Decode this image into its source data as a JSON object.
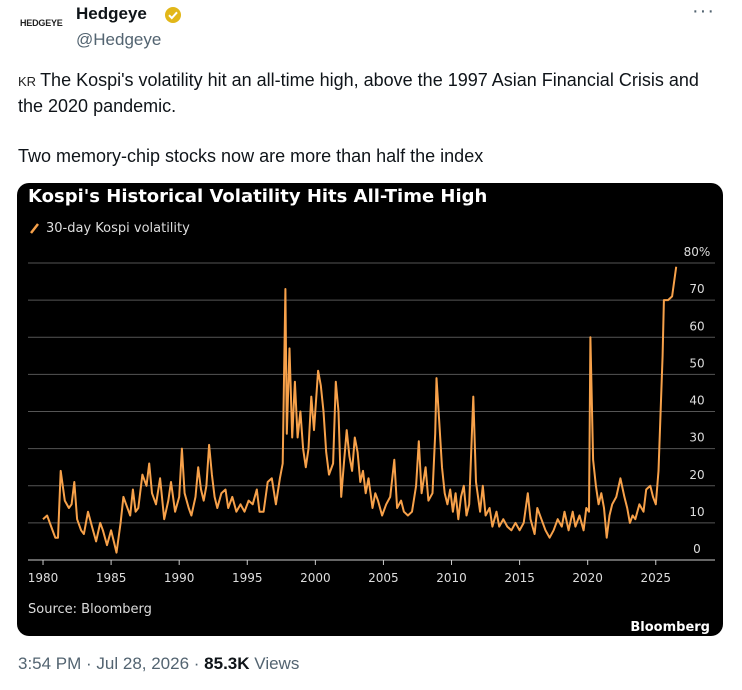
{
  "account": {
    "avatar_text": "HEDGEYE",
    "name": "Hedgeye",
    "handle": "@Hedgeye",
    "menu": "···"
  },
  "tweet": {
    "flag": "KR",
    "paragraphs": [
      "The Kospi's volatility hit an all-time high, above the 1997 Asian Financial Crisis and the 2020 pandemic.",
      "Two memory-chip stocks now are more than half the index"
    ]
  },
  "footer": {
    "meta": "3:54 PM · Jul 28, 2026 ·",
    "views_count": "85.3K",
    "views_label": "Views"
  },
  "chart_data": {
    "type": "line",
    "title": "Kospi's Historical Volatility Hits All-Time High",
    "source": "Source: Bloomberg",
    "brand": "Bloomberg",
    "series": [
      {
        "name": "30-day Kospi volatility",
        "color": "#f7a14a",
        "x": [
          1980,
          1980.3,
          1980.6,
          1980.9,
          1981.1,
          1981.3,
          1981.6,
          1981.9,
          1982.1,
          1982.3,
          1982.5,
          1982.8,
          1983,
          1983.3,
          1983.6,
          1983.9,
          1984.2,
          1984.4,
          1984.7,
          1985,
          1985.2,
          1985.4,
          1985.7,
          1985.9,
          1986.1,
          1986.4,
          1986.6,
          1986.8,
          1987,
          1987.3,
          1987.6,
          1987.8,
          1988,
          1988.3,
          1988.6,
          1988.9,
          1989.2,
          1989.4,
          1989.7,
          1990,
          1990.2,
          1990.4,
          1990.7,
          1990.9,
          1991.2,
          1991.4,
          1991.6,
          1991.8,
          1992,
          1992.2,
          1992.4,
          1992.6,
          1992.8,
          1993.1,
          1993.4,
          1993.6,
          1993.9,
          1994.2,
          1994.5,
          1994.8,
          1995.1,
          1995.4,
          1995.7,
          1995.9,
          1996.2,
          1996.5,
          1996.8,
          1997.1,
          1997.4,
          1997.6,
          1997.8,
          1997.9,
          1998.1,
          1998.3,
          1998.5,
          1998.7,
          1998.9,
          1999.1,
          1999.3,
          1999.5,
          1999.7,
          1999.9,
          2000.2,
          2000.4,
          2000.6,
          2000.8,
          2001,
          2001.3,
          2001.5,
          2001.7,
          2001.9,
          2002.1,
          2002.3,
          2002.5,
          2002.7,
          2002.9,
          2003.1,
          2003.3,
          2003.5,
          2003.7,
          2003.9,
          2004.2,
          2004.4,
          2004.6,
          2004.9,
          2005.2,
          2005.5,
          2005.8,
          2006,
          2006.3,
          2006.5,
          2006.8,
          2007.1,
          2007.4,
          2007.6,
          2007.8,
          2008.1,
          2008.3,
          2008.6,
          2008.8,
          2008.9,
          2009.1,
          2009.3,
          2009.5,
          2009.7,
          2009.9,
          2010.1,
          2010.3,
          2010.5,
          2010.7,
          2010.9,
          2011.1,
          2011.3,
          2011.6,
          2011.8,
          2012.1,
          2012.3,
          2012.5,
          2012.8,
          2013,
          2013.3,
          2013.5,
          2013.8,
          2014.1,
          2014.4,
          2014.7,
          2015,
          2015.3,
          2015.6,
          2015.8,
          2016.1,
          2016.3,
          2016.6,
          2016.9,
          2017.2,
          2017.5,
          2017.8,
          2018.1,
          2018.3,
          2018.6,
          2018.9,
          2019.1,
          2019.4,
          2019.7,
          2019.9,
          2020.1,
          2020.2,
          2020.4,
          2020.6,
          2020.8,
          2021,
          2021.2,
          2021.4,
          2021.6,
          2021.8,
          2022.1,
          2022.4,
          2022.7,
          2022.9,
          2023.1,
          2023.3,
          2023.5,
          2023.8,
          2024.1,
          2024.3,
          2024.6,
          2024.8,
          2025,
          2025.2,
          2025.5,
          2025.6,
          2025.9,
          2026.2,
          2026.5
        ],
        "values": [
          11,
          12,
          9,
          6,
          6,
          24,
          16,
          14,
          15,
          21,
          11,
          8,
          7,
          13,
          9,
          5,
          10,
          8,
          4,
          8,
          5,
          2,
          10,
          17,
          15,
          12,
          19,
          13,
          14,
          23,
          20,
          26,
          18,
          15,
          22,
          11,
          16,
          21,
          13,
          17,
          30,
          18,
          14,
          12,
          17,
          25,
          19,
          16,
          20,
          31,
          23,
          17,
          14,
          18,
          19,
          14,
          17,
          13,
          15,
          13,
          16,
          15,
          19,
          13,
          13,
          21,
          22,
          15,
          22,
          26,
          73,
          34,
          57,
          33,
          48,
          33,
          40,
          30,
          25,
          30,
          44,
          35,
          51,
          47,
          40,
          29,
          23,
          26,
          48,
          40,
          17,
          26,
          35,
          28,
          24,
          33,
          29,
          21,
          24,
          18,
          22,
          14,
          18,
          16,
          12,
          15,
          17,
          27,
          14,
          16,
          13,
          12,
          13,
          20,
          32,
          18,
          25,
          16,
          18,
          34,
          49,
          37,
          25,
          18,
          15,
          19,
          13,
          18,
          11,
          17,
          20,
          12,
          15,
          44,
          21,
          13,
          20,
          12,
          14,
          9,
          13,
          9,
          11,
          9,
          8,
          10,
          8,
          10,
          18,
          11,
          7,
          14,
          11,
          8,
          6,
          8,
          11,
          9,
          13,
          8,
          13,
          9,
          12,
          8,
          14,
          13,
          60,
          27,
          20,
          15,
          18,
          14,
          6,
          12,
          15,
          17,
          22,
          17,
          14,
          10,
          12,
          11,
          15,
          13,
          19,
          20,
          17,
          15,
          24,
          55,
          70,
          70,
          71,
          79
        ]
      }
    ],
    "xlim": [
      1979,
      2027
    ],
    "xticks": [
      1980,
      1985,
      1990,
      1995,
      2000,
      2005,
      2010,
      2015,
      2020,
      2025
    ],
    "ylim": [
      0,
      80
    ],
    "yticks": [
      0,
      10,
      20,
      30,
      40,
      50,
      60,
      70,
      {
        "value": 80,
        "label": "80%"
      }
    ],
    "grid": true,
    "axis_side": "right",
    "background": "#000000"
  }
}
